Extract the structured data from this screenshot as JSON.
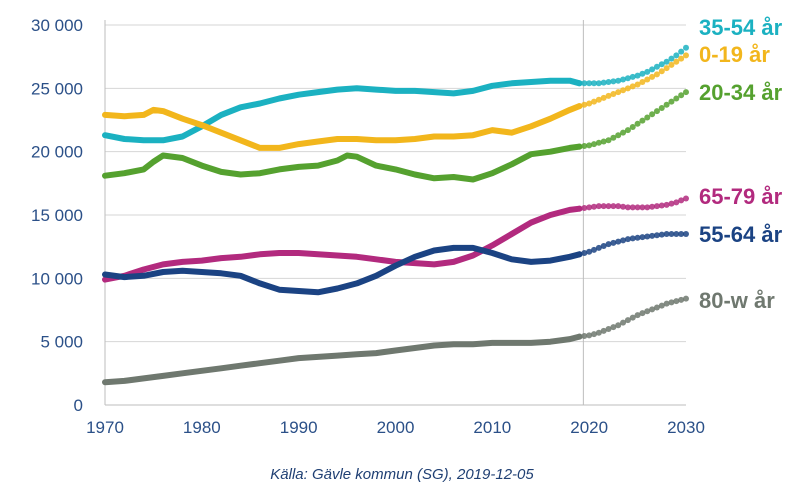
{
  "source": "Källa: Gävle kommun (SG), 2019-12-05",
  "chart_data": {
    "type": "line",
    "title": "",
    "xlabel": "",
    "ylabel": "",
    "xlim": [
      1970,
      2030
    ],
    "ylim": [
      0,
      30000
    ],
    "x_ticks": [
      1970,
      1980,
      1990,
      2000,
      2010,
      2020,
      2030
    ],
    "x_tick_labels": [
      "1970",
      "1980",
      "1990",
      "2000",
      "2010",
      "2020",
      "2030"
    ],
    "y_ticks": [
      0,
      5000,
      10000,
      15000,
      20000,
      25000,
      30000
    ],
    "y_tick_labels": [
      "0",
      "5 000",
      "10 000",
      "15 000",
      "20 000",
      "25 000",
      "30 000"
    ],
    "grid": "horizontal",
    "forecast_start": 2019,
    "forecast_style": "dotted",
    "legend": "labels at right end of each line",
    "series": [
      {
        "name": "35-54 år",
        "color": "#1bb1c1",
        "observed": [
          [
            1970,
            21300
          ],
          [
            1972,
            21000
          ],
          [
            1974,
            20900
          ],
          [
            1976,
            20900
          ],
          [
            1978,
            21200
          ],
          [
            1980,
            22000
          ],
          [
            1982,
            22900
          ],
          [
            1984,
            23500
          ],
          [
            1986,
            23800
          ],
          [
            1988,
            24200
          ],
          [
            1990,
            24500
          ],
          [
            1992,
            24700
          ],
          [
            1994,
            24900
          ],
          [
            1996,
            25000
          ],
          [
            1998,
            24900
          ],
          [
            2000,
            24800
          ],
          [
            2002,
            24800
          ],
          [
            2004,
            24700
          ],
          [
            2006,
            24600
          ],
          [
            2008,
            24800
          ],
          [
            2010,
            25200
          ],
          [
            2012,
            25400
          ],
          [
            2014,
            25500
          ],
          [
            2016,
            25600
          ],
          [
            2018,
            25600
          ],
          [
            2019,
            25400
          ]
        ],
        "forecast": [
          [
            2019,
            25400
          ],
          [
            2020,
            25400
          ],
          [
            2021,
            25400
          ],
          [
            2022,
            25500
          ],
          [
            2023,
            25600
          ],
          [
            2024,
            25800
          ],
          [
            2025,
            26000
          ],
          [
            2026,
            26300
          ],
          [
            2027,
            26700
          ],
          [
            2028,
            27100
          ],
          [
            2029,
            27600
          ],
          [
            2030,
            28200
          ]
        ]
      },
      {
        "name": "0-19 år",
        "color": "#f2b61c",
        "observed": [
          [
            1970,
            22900
          ],
          [
            1972,
            22800
          ],
          [
            1974,
            22900
          ],
          [
            1975,
            23300
          ],
          [
            1976,
            23200
          ],
          [
            1978,
            22600
          ],
          [
            1980,
            22100
          ],
          [
            1982,
            21500
          ],
          [
            1984,
            20900
          ],
          [
            1986,
            20300
          ],
          [
            1988,
            20300
          ],
          [
            1990,
            20600
          ],
          [
            1992,
            20800
          ],
          [
            1994,
            21000
          ],
          [
            1996,
            21000
          ],
          [
            1998,
            20900
          ],
          [
            2000,
            20900
          ],
          [
            2002,
            21000
          ],
          [
            2004,
            21200
          ],
          [
            2006,
            21200
          ],
          [
            2008,
            21300
          ],
          [
            2010,
            21700
          ],
          [
            2012,
            21500
          ],
          [
            2014,
            22000
          ],
          [
            2016,
            22600
          ],
          [
            2018,
            23300
          ],
          [
            2019,
            23600
          ]
        ],
        "forecast": [
          [
            2019,
            23600
          ],
          [
            2020,
            23800
          ],
          [
            2021,
            24100
          ],
          [
            2022,
            24400
          ],
          [
            2023,
            24700
          ],
          [
            2024,
            25000
          ],
          [
            2025,
            25300
          ],
          [
            2026,
            25700
          ],
          [
            2027,
            26100
          ],
          [
            2028,
            26600
          ],
          [
            2029,
            27100
          ],
          [
            2030,
            27600
          ]
        ]
      },
      {
        "name": "20-34 år",
        "color": "#55a12f",
        "observed": [
          [
            1970,
            18100
          ],
          [
            1972,
            18300
          ],
          [
            1974,
            18600
          ],
          [
            1975,
            19200
          ],
          [
            1976,
            19700
          ],
          [
            1978,
            19500
          ],
          [
            1980,
            18900
          ],
          [
            1982,
            18400
          ],
          [
            1984,
            18200
          ],
          [
            1986,
            18300
          ],
          [
            1988,
            18600
          ],
          [
            1990,
            18800
          ],
          [
            1992,
            18900
          ],
          [
            1994,
            19300
          ],
          [
            1995,
            19700
          ],
          [
            1996,
            19600
          ],
          [
            1998,
            18900
          ],
          [
            2000,
            18600
          ],
          [
            2002,
            18200
          ],
          [
            2004,
            17900
          ],
          [
            2006,
            18000
          ],
          [
            2008,
            17800
          ],
          [
            2010,
            18300
          ],
          [
            2012,
            19000
          ],
          [
            2014,
            19800
          ],
          [
            2016,
            20000
          ],
          [
            2018,
            20300
          ],
          [
            2019,
            20400
          ]
        ],
        "forecast": [
          [
            2019,
            20400
          ],
          [
            2020,
            20500
          ],
          [
            2021,
            20700
          ],
          [
            2022,
            20900
          ],
          [
            2023,
            21300
          ],
          [
            2024,
            21700
          ],
          [
            2025,
            22200
          ],
          [
            2026,
            22700
          ],
          [
            2027,
            23200
          ],
          [
            2028,
            23700
          ],
          [
            2029,
            24200
          ],
          [
            2030,
            24700
          ]
        ]
      },
      {
        "name": "65-79 år",
        "color": "#b22a7e",
        "observed": [
          [
            1970,
            9900
          ],
          [
            1972,
            10200
          ],
          [
            1974,
            10700
          ],
          [
            1976,
            11100
          ],
          [
            1978,
            11300
          ],
          [
            1980,
            11400
          ],
          [
            1982,
            11600
          ],
          [
            1984,
            11700
          ],
          [
            1986,
            11900
          ],
          [
            1988,
            12000
          ],
          [
            1990,
            12000
          ],
          [
            1992,
            11900
          ],
          [
            1994,
            11800
          ],
          [
            1996,
            11700
          ],
          [
            1998,
            11500
          ],
          [
            2000,
            11300
          ],
          [
            2002,
            11200
          ],
          [
            2004,
            11100
          ],
          [
            2006,
            11300
          ],
          [
            2008,
            11800
          ],
          [
            2010,
            12600
          ],
          [
            2012,
            13500
          ],
          [
            2014,
            14400
          ],
          [
            2016,
            15000
          ],
          [
            2018,
            15400
          ],
          [
            2019,
            15500
          ]
        ],
        "forecast": [
          [
            2019,
            15500
          ],
          [
            2020,
            15600
          ],
          [
            2021,
            15700
          ],
          [
            2022,
            15700
          ],
          [
            2023,
            15700
          ],
          [
            2024,
            15600
          ],
          [
            2025,
            15600
          ],
          [
            2026,
            15600
          ],
          [
            2027,
            15700
          ],
          [
            2028,
            15800
          ],
          [
            2029,
            16000
          ],
          [
            2030,
            16300
          ]
        ]
      },
      {
        "name": "55-64 år",
        "color": "#1b4383",
        "observed": [
          [
            1970,
            10300
          ],
          [
            1972,
            10100
          ],
          [
            1974,
            10200
          ],
          [
            1976,
            10500
          ],
          [
            1978,
            10600
          ],
          [
            1980,
            10500
          ],
          [
            1982,
            10400
          ],
          [
            1984,
            10200
          ],
          [
            1986,
            9600
          ],
          [
            1988,
            9100
          ],
          [
            1990,
            9000
          ],
          [
            1992,
            8900
          ],
          [
            1994,
            9200
          ],
          [
            1996,
            9600
          ],
          [
            1998,
            10200
          ],
          [
            2000,
            11000
          ],
          [
            2002,
            11700
          ],
          [
            2004,
            12200
          ],
          [
            2006,
            12400
          ],
          [
            2008,
            12400
          ],
          [
            2010,
            12000
          ],
          [
            2012,
            11500
          ],
          [
            2014,
            11300
          ],
          [
            2016,
            11400
          ],
          [
            2018,
            11700
          ],
          [
            2019,
            11900
          ]
        ],
        "forecast": [
          [
            2019,
            11900
          ],
          [
            2020,
            12100
          ],
          [
            2021,
            12400
          ],
          [
            2022,
            12700
          ],
          [
            2023,
            12900
          ],
          [
            2024,
            13100
          ],
          [
            2025,
            13200
          ],
          [
            2026,
            13300
          ],
          [
            2027,
            13400
          ],
          [
            2028,
            13500
          ],
          [
            2029,
            13500
          ],
          [
            2030,
            13500
          ]
        ]
      },
      {
        "name": "80-w år",
        "color": "#6f786f",
        "observed": [
          [
            1970,
            1800
          ],
          [
            1972,
            1900
          ],
          [
            1974,
            2100
          ],
          [
            1976,
            2300
          ],
          [
            1978,
            2500
          ],
          [
            1980,
            2700
          ],
          [
            1982,
            2900
          ],
          [
            1984,
            3100
          ],
          [
            1986,
            3300
          ],
          [
            1988,
            3500
          ],
          [
            1990,
            3700
          ],
          [
            1992,
            3800
          ],
          [
            1994,
            3900
          ],
          [
            1996,
            4000
          ],
          [
            1998,
            4100
          ],
          [
            2000,
            4300
          ],
          [
            2002,
            4500
          ],
          [
            2004,
            4700
          ],
          [
            2006,
            4800
          ],
          [
            2008,
            4800
          ],
          [
            2010,
            4900
          ],
          [
            2012,
            4900
          ],
          [
            2014,
            4900
          ],
          [
            2016,
            5000
          ],
          [
            2018,
            5200
          ],
          [
            2019,
            5400
          ]
        ],
        "forecast": [
          [
            2019,
            5400
          ],
          [
            2020,
            5500
          ],
          [
            2021,
            5700
          ],
          [
            2022,
            6000
          ],
          [
            2023,
            6300
          ],
          [
            2024,
            6700
          ],
          [
            2025,
            7100
          ],
          [
            2026,
            7400
          ],
          [
            2027,
            7700
          ],
          [
            2028,
            8000
          ],
          [
            2029,
            8200
          ],
          [
            2030,
            8400
          ]
        ]
      }
    ]
  }
}
